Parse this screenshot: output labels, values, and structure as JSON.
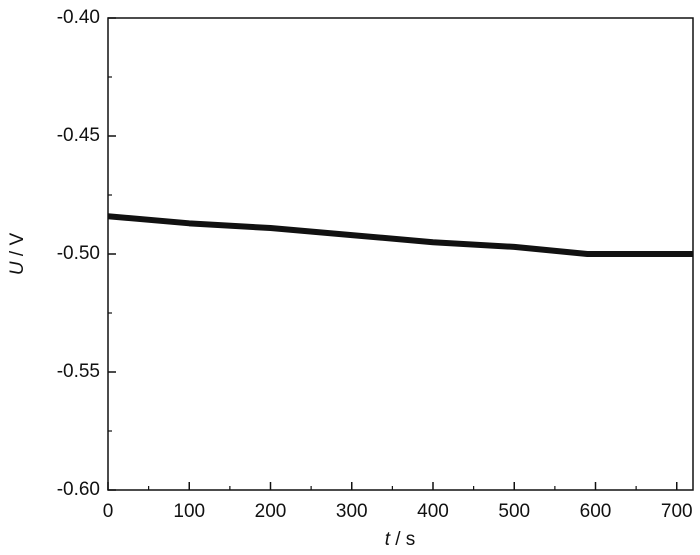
{
  "chart_data": {
    "type": "line",
    "x_label": {
      "symbol": "t",
      "unit": "/ s"
    },
    "y_label": {
      "symbol": "U",
      "unit": "/ V"
    },
    "x": [
      0,
      100,
      200,
      300,
      400,
      500,
      590,
      720
    ],
    "series": [
      {
        "color": "#111111",
        "values": [
          -0.484,
          -0.487,
          -0.489,
          -0.492,
          -0.495,
          -0.497,
          -0.5,
          -0.5
        ]
      }
    ],
    "xlim": [
      0,
      720
    ],
    "xticks": [
      0,
      100,
      200,
      300,
      400,
      500,
      600,
      700
    ],
    "ylim": [
      -0.6,
      -0.4
    ],
    "yticks": [
      {
        "value": -0.6,
        "label": "-0.60"
      },
      {
        "value": -0.55,
        "label": "-0.55"
      },
      {
        "value": -0.5,
        "label": "-0.50"
      },
      {
        "value": -0.45,
        "label": "-0.45"
      },
      {
        "value": -0.4,
        "label": "-0.40"
      }
    ],
    "grid": false
  }
}
